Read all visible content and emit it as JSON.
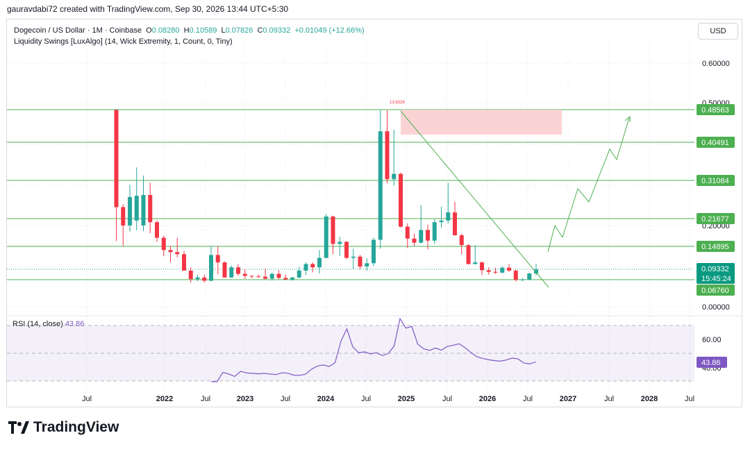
{
  "credit": "gauravdabi72 created with TradingView.com, Sep 30, 2026 13:44 UTC+5:30",
  "legend": {
    "symbol": "Dogecoin / US Dollar · 1M · Coinbase",
    "o_label": "O",
    "o_value": "0.08280",
    "h_label": "H",
    "h_value": "0.10589",
    "l_label": "L",
    "l_value": "0.07826",
    "c_label": "C",
    "c_value": "0.09332",
    "change": "+0.01049 (+12.66%)",
    "indicator": "Liquidity Swings [LuxAlgo] (14, Wick Extremity, 1, Count, 0, Tiny)"
  },
  "currency_button": "USD",
  "brand": "TradingView",
  "colors": {
    "up": "#26a69a",
    "down": "#f23645",
    "level": "#4caf50",
    "rsi": "#7e57c2",
    "zone": "#fccbcd",
    "projection": "#4caf50"
  },
  "chart_data": [
    {
      "type": "candlestick",
      "symbol": "Dogecoin / US Dollar",
      "interval": "1M",
      "y_ticks": [
        "0.60000",
        "0.50000",
        "0.20000",
        "0.00000"
      ],
      "x_ticks": [
        "Jul",
        "2022",
        "Jul",
        "2023",
        "Jul",
        "2024",
        "Jul",
        "2025",
        "Jul",
        "2026",
        "Jul",
        "2027",
        "Jul",
        "2028",
        "Jul"
      ],
      "horizontal_levels": [
        "0.48563",
        "0.40491",
        "0.31084",
        "0.21677",
        "0.14895",
        "0.06760"
      ],
      "current_price": "0.09332",
      "countdown": "15:45:24",
      "zone_label": "13.8328",
      "candles": [
        {
          "o": 0.485,
          "h": 0.485,
          "l": 0.162,
          "c": 0.245
        },
        {
          "o": 0.245,
          "h": 0.252,
          "l": 0.15,
          "c": 0.2
        },
        {
          "o": 0.2,
          "h": 0.3,
          "l": 0.185,
          "c": 0.27
        },
        {
          "o": 0.212,
          "h": 0.343,
          "l": 0.188,
          "c": 0.273
        },
        {
          "o": 0.2,
          "h": 0.323,
          "l": 0.186,
          "c": 0.275
        },
        {
          "o": 0.275,
          "h": 0.305,
          "l": 0.181,
          "c": 0.208
        },
        {
          "o": 0.208,
          "h": 0.212,
          "l": 0.16,
          "c": 0.17
        },
        {
          "o": 0.17,
          "h": 0.175,
          "l": 0.125,
          "c": 0.14
        },
        {
          "o": 0.14,
          "h": 0.15,
          "l": 0.11,
          "c": 0.135
        },
        {
          "o": 0.135,
          "h": 0.17,
          "l": 0.122,
          "c": 0.13
        },
        {
          "o": 0.13,
          "h": 0.138,
          "l": 0.09,
          "c": 0.09
        },
        {
          "o": 0.09,
          "h": 0.098,
          "l": 0.06,
          "c": 0.069
        },
        {
          "o": 0.069,
          "h": 0.08,
          "l": 0.064,
          "c": 0.073
        },
        {
          "o": 0.073,
          "h": 0.08,
          "l": 0.06,
          "c": 0.065
        },
        {
          "o": 0.065,
          "h": 0.15,
          "l": 0.063,
          "c": 0.128
        },
        {
          "o": 0.128,
          "h": 0.15,
          "l": 0.081,
          "c": 0.11
        },
        {
          "o": 0.11,
          "h": 0.112,
          "l": 0.073,
          "c": 0.073
        },
        {
          "o": 0.073,
          "h": 0.103,
          "l": 0.072,
          "c": 0.098
        },
        {
          "o": 0.098,
          "h": 0.106,
          "l": 0.077,
          "c": 0.082
        },
        {
          "o": 0.082,
          "h": 0.094,
          "l": 0.07,
          "c": 0.077
        },
        {
          "o": 0.077,
          "h": 0.078,
          "l": 0.071,
          "c": 0.076
        },
        {
          "o": 0.076,
          "h": 0.08,
          "l": 0.072,
          "c": 0.075
        },
        {
          "o": 0.075,
          "h": 0.095,
          "l": 0.068,
          "c": 0.07
        },
        {
          "o": 0.07,
          "h": 0.085,
          "l": 0.065,
          "c": 0.082
        },
        {
          "o": 0.082,
          "h": 0.091,
          "l": 0.069,
          "c": 0.072
        },
        {
          "o": 0.072,
          "h": 0.08,
          "l": 0.068,
          "c": 0.068
        },
        {
          "o": 0.068,
          "h": 0.074,
          "l": 0.065,
          "c": 0.073
        },
        {
          "o": 0.073,
          "h": 0.099,
          "l": 0.071,
          "c": 0.09
        },
        {
          "o": 0.09,
          "h": 0.11,
          "l": 0.079,
          "c": 0.106
        },
        {
          "o": 0.106,
          "h": 0.11,
          "l": 0.086,
          "c": 0.098
        },
        {
          "o": 0.098,
          "h": 0.14,
          "l": 0.083,
          "c": 0.121
        },
        {
          "o": 0.121,
          "h": 0.228,
          "l": 0.12,
          "c": 0.222
        },
        {
          "o": 0.222,
          "h": 0.224,
          "l": 0.13,
          "c": 0.155
        },
        {
          "o": 0.155,
          "h": 0.172,
          "l": 0.126,
          "c": 0.16
        },
        {
          "o": 0.16,
          "h": 0.162,
          "l": 0.118,
          "c": 0.121
        },
        {
          "o": 0.121,
          "h": 0.143,
          "l": 0.093,
          "c": 0.124
        },
        {
          "o": 0.124,
          "h": 0.128,
          "l": 0.093,
          "c": 0.1
        },
        {
          "o": 0.1,
          "h": 0.12,
          "l": 0.09,
          "c": 0.108
        },
        {
          "o": 0.108,
          "h": 0.17,
          "l": 0.101,
          "c": 0.165
        },
        {
          "o": 0.165,
          "h": 0.484,
          "l": 0.143,
          "c": 0.432
        },
        {
          "o": 0.432,
          "h": 0.484,
          "l": 0.304,
          "c": 0.314
        },
        {
          "o": 0.314,
          "h": 0.436,
          "l": 0.298,
          "c": 0.327
        },
        {
          "o": 0.327,
          "h": 0.33,
          "l": 0.195,
          "c": 0.197
        },
        {
          "o": 0.197,
          "h": 0.205,
          "l": 0.145,
          "c": 0.168
        },
        {
          "o": 0.168,
          "h": 0.18,
          "l": 0.149,
          "c": 0.158
        },
        {
          "o": 0.158,
          "h": 0.25,
          "l": 0.156,
          "c": 0.189
        },
        {
          "o": 0.189,
          "h": 0.202,
          "l": 0.142,
          "c": 0.163
        },
        {
          "o": 0.163,
          "h": 0.215,
          "l": 0.155,
          "c": 0.208
        },
        {
          "o": 0.208,
          "h": 0.246,
          "l": 0.195,
          "c": 0.212
        },
        {
          "o": 0.212,
          "h": 0.305,
          "l": 0.205,
          "c": 0.232
        },
        {
          "o": 0.232,
          "h": 0.258,
          "l": 0.175,
          "c": 0.176
        },
        {
          "o": 0.176,
          "h": 0.18,
          "l": 0.13,
          "c": 0.152
        },
        {
          "o": 0.152,
          "h": 0.154,
          "l": 0.105,
          "c": 0.106
        },
        {
          "o": 0.106,
          "h": 0.152,
          "l": 0.105,
          "c": 0.11
        },
        {
          "o": 0.11,
          "h": 0.112,
          "l": 0.079,
          "c": 0.091
        },
        {
          "o": 0.091,
          "h": 0.098,
          "l": 0.08,
          "c": 0.087
        },
        {
          "o": 0.087,
          "h": 0.097,
          "l": 0.082,
          "c": 0.085
        },
        {
          "o": 0.085,
          "h": 0.101,
          "l": 0.083,
          "c": 0.097
        },
        {
          "o": 0.097,
          "h": 0.106,
          "l": 0.087,
          "c": 0.09
        },
        {
          "o": 0.09,
          "h": 0.092,
          "l": 0.063,
          "c": 0.067
        },
        {
          "o": 0.067,
          "h": 0.072,
          "l": 0.064,
          "c": 0.068
        },
        {
          "o": 0.068,
          "h": 0.084,
          "l": 0.066,
          "c": 0.083
        },
        {
          "o": 0.083,
          "h": 0.106,
          "l": 0.078,
          "c": 0.093
        }
      ]
    },
    {
      "type": "line",
      "title": "RSI (14, close)",
      "value_label": "43.86",
      "y_ticks": [
        "60.00",
        "40.00"
      ],
      "values": [
        28.6,
        29.1,
        36.2,
        35.0,
        33.3,
        37.0,
        35.8,
        35.5,
        35.2,
        35.5,
        35.0,
        34.6,
        35.9,
        35.6,
        34.2,
        34.1,
        34.9,
        38.5,
        40.7,
        41.6,
        40.4,
        43.2,
        58.8,
        67.5,
        54.6,
        50.4,
        51.0,
        49.5,
        50.4,
        48.3,
        49.8,
        55.1,
        74.9,
        68.1,
        69.3,
        56.6,
        53.2,
        52.0,
        53.8,
        52.2,
        54.9,
        55.7,
        56.8,
        54.1,
        50.6,
        47.5,
        46.3,
        45.3,
        44.7,
        44.3,
        45.1,
        46.5,
        45.9,
        42.9,
        42.3,
        43.86
      ]
    }
  ]
}
